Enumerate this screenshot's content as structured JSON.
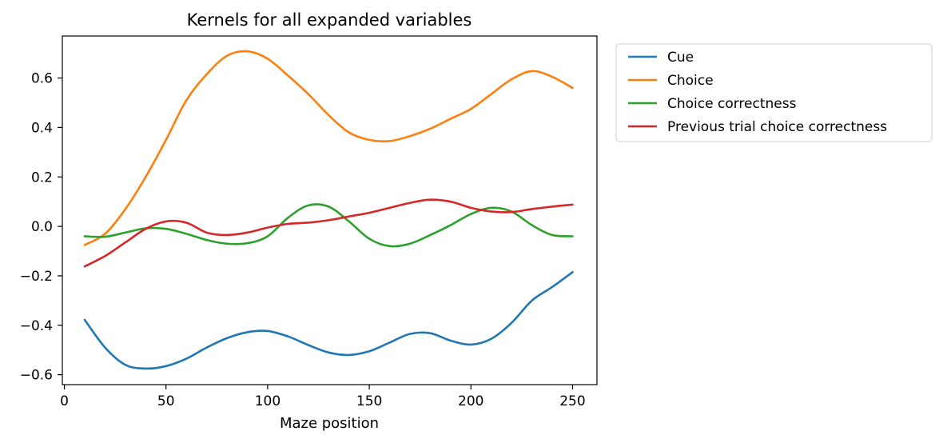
{
  "chart_data": {
    "type": "line",
    "title": "Kernels for all expanded variables",
    "xlabel": "Maze position",
    "ylabel": "",
    "xlim": [
      -1,
      262
    ],
    "ylim": [
      -0.64,
      0.77
    ],
    "xticks": [
      0,
      50,
      100,
      150,
      200,
      250
    ],
    "yticks": [
      -0.6,
      -0.4,
      -0.2,
      0.0,
      0.2,
      0.4,
      0.6
    ],
    "xtick_labels": [
      "0",
      "50",
      "100",
      "150",
      "200",
      "250"
    ],
    "ytick_labels": [
      "−0.6",
      "−0.4",
      "−0.2",
      "0.0",
      "0.2",
      "0.4",
      "0.6"
    ],
    "grid": false,
    "legend_position": "outside-top-right",
    "x": [
      10,
      20,
      30,
      40,
      50,
      60,
      70,
      80,
      90,
      100,
      110,
      120,
      130,
      140,
      150,
      160,
      170,
      180,
      190,
      200,
      210,
      220,
      230,
      240,
      250
    ],
    "series": [
      {
        "name": "Cue",
        "color": "#1f77b4",
        "values": [
          -0.378,
          -0.49,
          -0.56,
          -0.575,
          -0.565,
          -0.535,
          -0.49,
          -0.452,
          -0.428,
          -0.423,
          -0.445,
          -0.48,
          -0.51,
          -0.52,
          -0.505,
          -0.47,
          -0.435,
          -0.432,
          -0.462,
          -0.478,
          -0.455,
          -0.39,
          -0.3,
          -0.245,
          -0.185
        ]
      },
      {
        "name": "Choice",
        "color": "#ff7f0e",
        "values": [
          -0.075,
          -0.03,
          0.07,
          0.2,
          0.35,
          0.51,
          0.615,
          0.69,
          0.708,
          0.678,
          0.61,
          0.535,
          0.45,
          0.38,
          0.35,
          0.345,
          0.365,
          0.395,
          0.435,
          0.475,
          0.535,
          0.595,
          0.628,
          0.605,
          0.56
        ]
      },
      {
        "name": "Choice correctness",
        "color": "#2ca02c",
        "values": [
          -0.04,
          -0.042,
          -0.025,
          -0.008,
          -0.01,
          -0.03,
          -0.055,
          -0.07,
          -0.068,
          -0.04,
          0.035,
          0.085,
          0.08,
          0.02,
          -0.05,
          -0.08,
          -0.07,
          -0.035,
          0.005,
          0.05,
          0.075,
          0.06,
          0.005,
          -0.035,
          -0.04
        ]
      },
      {
        "name": "Previous trial choice correctness",
        "color": "#d62728",
        "values": [
          -0.162,
          -0.12,
          -0.065,
          -0.01,
          0.02,
          0.015,
          -0.025,
          -0.035,
          -0.025,
          -0.005,
          0.01,
          0.015,
          0.025,
          0.04,
          0.055,
          0.075,
          0.095,
          0.108,
          0.1,
          0.075,
          0.06,
          0.058,
          0.07,
          0.08,
          0.088
        ]
      }
    ]
  }
}
